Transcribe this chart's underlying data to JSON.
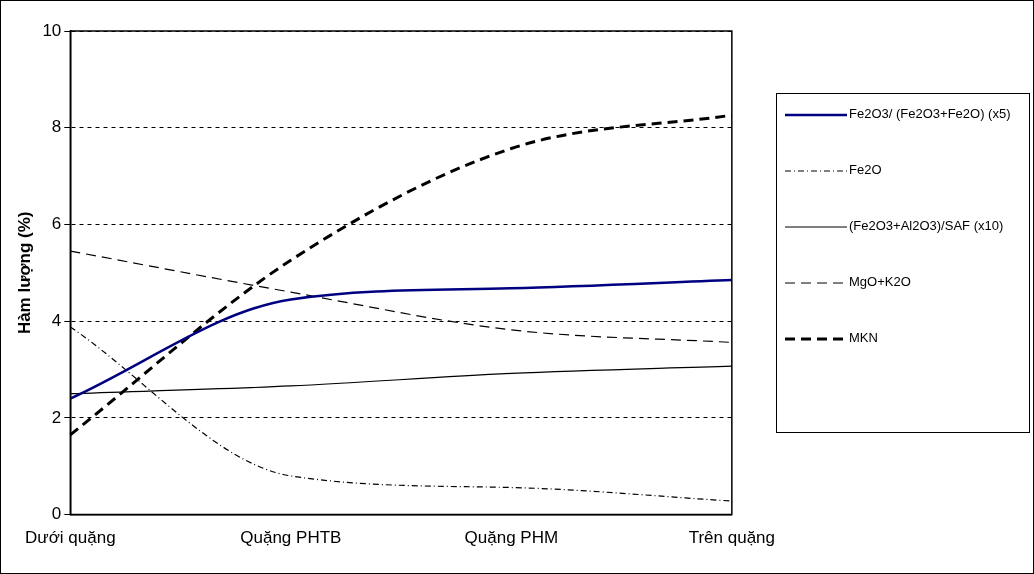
{
  "chart_data": {
    "type": "line",
    "ylabel": "Hàm lượng (%)",
    "categories": [
      "Dưới quặng",
      "Quặng PHTB",
      "Quặng PHM",
      "Trên quặng"
    ],
    "series": [
      {
        "name": "Fe2O3/ (Fe2O3+Fe2O) (x5)",
        "color": "#000080",
        "line_style": "solid",
        "values": [
          2.4,
          4.45,
          4.68,
          4.85
        ]
      },
      {
        "name": "Fe2O",
        "color": "#000000",
        "line_style": "dotted",
        "values": [
          3.88,
          0.8,
          0.56,
          0.28
        ]
      },
      {
        "name": "(Fe2O3+Al2O3)/SAF (x10)",
        "color": "#000000",
        "line_style": "solid",
        "values": [
          2.5,
          2.66,
          2.92,
          3.07
        ]
      },
      {
        "name": "MgO+K2O",
        "color": "#000000",
        "line_style": "dashed",
        "values": [
          5.45,
          4.6,
          3.82,
          3.56
        ]
      },
      {
        "name": "MKN",
        "color": "#000000",
        "line_style": "dashed",
        "values": [
          1.65,
          5.26,
          7.57,
          8.26
        ]
      }
    ],
    "ylim": [
      0,
      10
    ],
    "yticks": [
      0,
      2,
      4,
      6,
      8,
      10
    ],
    "grid": "y",
    "legend": "right",
    "marker": "none"
  }
}
